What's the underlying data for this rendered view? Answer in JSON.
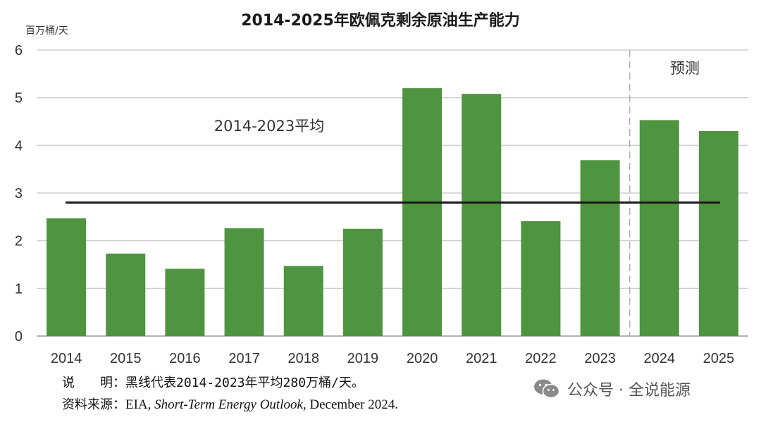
{
  "chart_data": {
    "type": "bar",
    "title": "2014-2025年欧佩克剩余原油生产能力",
    "ylabel": "百万桶/天",
    "xlabel": "",
    "categories": [
      "2014",
      "2015",
      "2016",
      "2017",
      "2018",
      "2019",
      "2020",
      "2021",
      "2022",
      "2023",
      "2024",
      "2025"
    ],
    "values": [
      2.47,
      1.73,
      1.41,
      2.26,
      1.47,
      2.25,
      5.2,
      5.08,
      2.41,
      3.69,
      4.53,
      4.3
    ],
    "ylim": [
      0,
      6
    ],
    "yticks": [
      "0",
      "1",
      "2",
      "3",
      "4",
      "5",
      "6"
    ],
    "grid": true,
    "bar_color": "#4f9440",
    "average": {
      "label": "2014-2023平均",
      "value": 2.8,
      "color": "#1a1a1a"
    },
    "forecast": {
      "label": "预测",
      "start_category": "2024"
    }
  },
  "notes": {
    "note_label": "说　　明：",
    "note_text": "黑线代表2014-2023年平均280万桶/天。",
    "source_label": "资料来源：",
    "source_org": "EIA, ",
    "source_pub": "Short-Term Energy Outlook,",
    "source_date": " December 2024."
  },
  "watermark": {
    "icon": "wechat-icon",
    "text": "公众号 · 全说能源"
  }
}
